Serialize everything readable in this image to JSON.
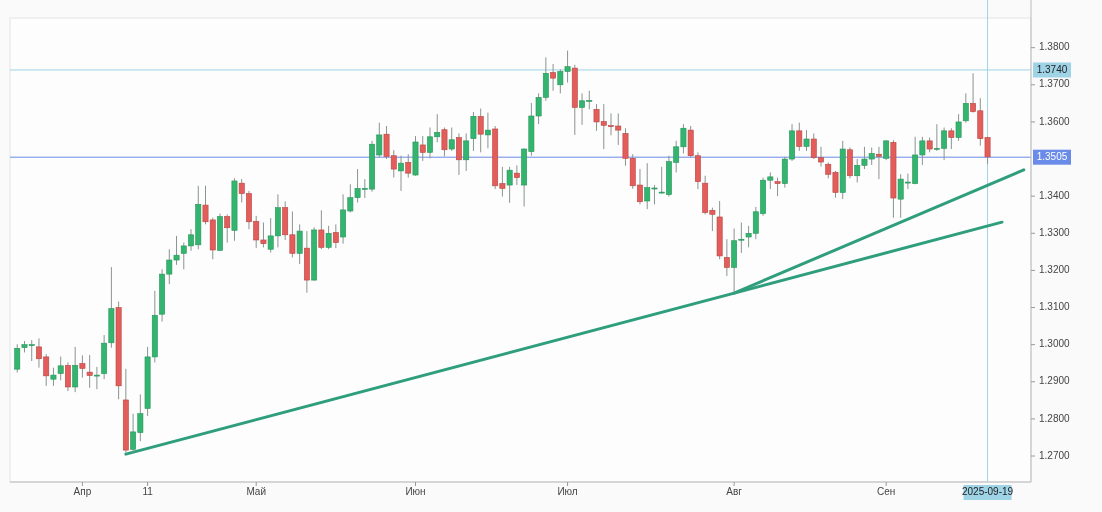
{
  "chart_data": {
    "type": "candlestick",
    "categories": [
      null,
      null,
      null,
      null,
      null,
      null,
      null,
      null,
      null,
      "Апр",
      null,
      null,
      null,
      null,
      null,
      null,
      null,
      null,
      "11",
      null,
      null,
      null,
      null,
      null,
      null,
      null,
      null,
      null,
      null,
      null,
      null,
      null,
      null,
      "Май",
      null,
      null,
      null,
      null,
      null,
      null,
      null,
      null,
      null,
      null,
      null,
      null,
      null,
      null,
      null,
      null,
      null,
      null,
      null,
      null,
      null,
      "Июн",
      null,
      null,
      null,
      null,
      null,
      null,
      null,
      null,
      null,
      null,
      null,
      null,
      null,
      null,
      null,
      null,
      null,
      null,
      null,
      null,
      "Июл",
      null,
      null,
      null,
      null,
      null,
      null,
      null,
      null,
      null,
      null,
      null,
      null,
      null,
      null,
      null,
      null,
      null,
      null,
      null,
      null,
      null,
      null,
      "Авг",
      null,
      null,
      null,
      null,
      null,
      null,
      null,
      null,
      null,
      null,
      null,
      null,
      null,
      null,
      null,
      null,
      null,
      null,
      null,
      null,
      "Сен",
      null,
      null,
      null,
      null,
      null,
      null,
      null,
      null,
      null,
      null,
      null,
      null,
      null,
      "2025-09-19",
      null,
      null,
      null,
      null,
      null
    ],
    "ohlc": [
      [
        1.2934,
        1.3001,
        1.2925,
        1.299
      ],
      [
        1.2992,
        1.301,
        1.2979,
        1.3
      ],
      [
        1.2999,
        1.3012,
        1.2956,
        1.3
      ],
      [
        1.2994,
        1.3017,
        1.2938,
        1.2962
      ],
      [
        1.2967,
        1.2974,
        1.2889,
        1.2916
      ],
      [
        1.2907,
        1.2938,
        1.2889,
        1.2918
      ],
      [
        1.2922,
        1.2968,
        1.2904,
        1.2943
      ],
      [
        1.2944,
        1.2952,
        1.2875,
        1.2886
      ],
      [
        1.2886,
        1.2994,
        1.2872,
        1.2944
      ],
      [
        1.2949,
        1.2971,
        1.2911,
        1.2936
      ],
      [
        1.2926,
        1.2972,
        1.2884,
        1.2917
      ],
      [
        1.2917,
        1.294,
        1.288,
        1.2918
      ],
      [
        1.2922,
        1.3026,
        1.2907,
        1.3004
      ],
      [
        1.3005,
        1.3209,
        1.2992,
        1.3097
      ],
      [
        1.31,
        1.3116,
        1.2853,
        1.2889
      ],
      [
        1.2851,
        1.2935,
        1.2709,
        1.2716
      ],
      [
        1.2718,
        1.2814,
        1.2709,
        1.2765
      ],
      [
        1.2763,
        1.2866,
        1.274,
        1.2814
      ],
      [
        1.2828,
        1.2994,
        1.2808,
        1.2967
      ],
      [
        1.2967,
        1.3145,
        1.2952,
        1.3079
      ],
      [
        1.3082,
        1.3203,
        1.3062,
        1.319
      ],
      [
        1.319,
        1.3257,
        1.3163,
        1.3228
      ],
      [
        1.3228,
        1.3293,
        1.3215,
        1.3241
      ],
      [
        1.3246,
        1.3275,
        1.3203,
        1.3266
      ],
      [
        1.3266,
        1.3311,
        1.3253,
        1.3296
      ],
      [
        1.3269,
        1.3428,
        1.3257,
        1.3378
      ],
      [
        1.3376,
        1.3428,
        1.3324,
        1.3331
      ],
      [
        1.3336,
        1.3342,
        1.323,
        1.3255
      ],
      [
        1.3254,
        1.3353,
        1.3253,
        1.3345
      ],
      [
        1.3345,
        1.3351,
        1.3275,
        1.3315
      ],
      [
        1.3308,
        1.3448,
        1.328,
        1.3441
      ],
      [
        1.3435,
        1.3446,
        1.3383,
        1.3407
      ],
      [
        1.3407,
        1.3414,
        1.3311,
        1.3331
      ],
      [
        1.3332,
        1.3347,
        1.326,
        1.3282
      ],
      [
        1.3282,
        1.3329,
        1.3262,
        1.3272
      ],
      [
        1.3257,
        1.3341,
        1.3248,
        1.3293
      ],
      [
        1.3293,
        1.3405,
        1.3262,
        1.3369
      ],
      [
        1.3369,
        1.3386,
        1.3282,
        1.3296
      ],
      [
        1.3296,
        1.3359,
        1.3235,
        1.3246
      ],
      [
        1.3246,
        1.3324,
        1.3217,
        1.3306
      ],
      [
        1.326,
        1.3306,
        1.314,
        1.3174
      ],
      [
        1.3174,
        1.3316,
        1.3172,
        1.3309
      ],
      [
        1.3309,
        1.3362,
        1.3257,
        1.3262
      ],
      [
        1.3262,
        1.332,
        1.3257,
        1.33
      ],
      [
        1.3302,
        1.3324,
        1.326,
        1.3275
      ],
      [
        1.329,
        1.3405,
        1.3272,
        1.3363
      ],
      [
        1.336,
        1.3432,
        1.3356,
        1.3396
      ],
      [
        1.3396,
        1.3473,
        1.3383,
        1.3421
      ],
      [
        1.342,
        1.3446,
        1.3395,
        1.3421
      ],
      [
        1.3419,
        1.3549,
        1.3412,
        1.354
      ],
      [
        1.3511,
        1.3598,
        1.3504,
        1.3565
      ],
      [
        1.3567,
        1.3589,
        1.35,
        1.3507
      ],
      [
        1.3509,
        1.3524,
        1.345,
        1.3473
      ],
      [
        1.3468,
        1.3509,
        1.3414,
        1.3489
      ],
      [
        1.3491,
        1.3513,
        1.345,
        1.3462
      ],
      [
        1.3457,
        1.3562,
        1.3455,
        1.3546
      ],
      [
        1.3538,
        1.3562,
        1.3495,
        1.3518
      ],
      [
        1.3518,
        1.3585,
        1.3502,
        1.356
      ],
      [
        1.356,
        1.3621,
        1.3545,
        1.3572
      ],
      [
        1.3579,
        1.3585,
        1.3507,
        1.3525
      ],
      [
        1.3527,
        1.3585,
        1.3522,
        1.3552
      ],
      [
        1.3558,
        1.3569,
        1.3457,
        1.3498
      ],
      [
        1.3498,
        1.3569,
        1.3468,
        1.3549
      ],
      [
        1.3555,
        1.3627,
        1.3522,
        1.3615
      ],
      [
        1.3615,
        1.3636,
        1.3518,
        1.3567
      ],
      [
        1.3565,
        1.3625,
        1.3529,
        1.3578
      ],
      [
        1.3581,
        1.3589,
        1.3419,
        1.3428
      ],
      [
        1.3434,
        1.3479,
        1.3399,
        1.3421
      ],
      [
        1.343,
        1.3479,
        1.3382,
        1.347
      ],
      [
        1.3462,
        1.3483,
        1.343,
        1.345
      ],
      [
        1.343,
        1.3529,
        1.3372,
        1.3527
      ],
      [
        1.352,
        1.3651,
        1.3509,
        1.3616
      ],
      [
        1.3616,
        1.3677,
        1.3594,
        1.3666
      ],
      [
        1.3666,
        1.3774,
        1.3657,
        1.3731
      ],
      [
        1.3733,
        1.3756,
        1.3684,
        1.3718
      ],
      [
        1.37,
        1.3742,
        1.3677,
        1.3736
      ],
      [
        1.3736,
        1.3792,
        1.3706,
        1.3749
      ],
      [
        1.3745,
        1.3754,
        1.3565,
        1.3639
      ],
      [
        1.3639,
        1.3677,
        1.3592,
        1.3657
      ],
      [
        1.3657,
        1.3684,
        1.3634,
        1.3658
      ],
      [
        1.3634,
        1.3648,
        1.3576,
        1.36
      ],
      [
        1.3601,
        1.3648,
        1.3527,
        1.3591
      ],
      [
        1.359,
        1.3623,
        1.3564,
        1.3589
      ],
      [
        1.3589,
        1.3623,
        1.3538,
        1.3578
      ],
      [
        1.3569,
        1.3583,
        1.3482,
        1.3502
      ],
      [
        1.3502,
        1.3513,
        1.342,
        1.3428
      ],
      [
        1.343,
        1.3473,
        1.3378,
        1.3385
      ],
      [
        1.3387,
        1.3489,
        1.3365,
        1.3423
      ],
      [
        1.3421,
        1.343,
        1.3378,
        1.3422
      ],
      [
        1.341,
        1.3479,
        1.3407,
        1.3411
      ],
      [
        1.3404,
        1.3509,
        1.3399,
        1.3493
      ],
      [
        1.3491,
        1.3549,
        1.3464,
        1.3533
      ],
      [
        1.3533,
        1.3594,
        1.3515,
        1.3583
      ],
      [
        1.3578,
        1.3589,
        1.3504,
        1.3509
      ],
      [
        1.3509,
        1.3518,
        1.3419,
        1.3439
      ],
      [
        1.3435,
        1.3455,
        1.3351,
        1.3356
      ],
      [
        1.3362,
        1.3369,
        1.3306,
        1.3351
      ],
      [
        1.3344,
        1.3387,
        1.323,
        1.3239
      ],
      [
        1.3235,
        1.3284,
        1.3185,
        1.3208
      ],
      [
        1.3208,
        1.3313,
        1.314,
        1.328
      ],
      [
        1.3283,
        1.3329,
        1.3247,
        1.3284
      ],
      [
        1.329,
        1.332,
        1.3262,
        1.33
      ],
      [
        1.33,
        1.3371,
        1.3284,
        1.3358
      ],
      [
        1.3353,
        1.345,
        1.3347,
        1.3443
      ],
      [
        1.3443,
        1.3464,
        1.3419,
        1.3452
      ],
      [
        1.3439,
        1.345,
        1.34,
        1.3434
      ],
      [
        1.3434,
        1.3506,
        1.3423,
        1.35
      ],
      [
        1.35,
        1.3594,
        1.3495,
        1.3576
      ],
      [
        1.3576,
        1.3598,
        1.3522,
        1.3534
      ],
      [
        1.3534,
        1.3578,
        1.3522,
        1.3554
      ],
      [
        1.3554,
        1.3569,
        1.35,
        1.3504
      ],
      [
        1.3504,
        1.3533,
        1.348,
        1.3492
      ],
      [
        1.3486,
        1.3491,
        1.3448,
        1.3459
      ],
      [
        1.3464,
        1.3468,
        1.3396,
        1.341
      ],
      [
        1.341,
        1.3549,
        1.3392,
        1.3527
      ],
      [
        1.3525,
        1.3531,
        1.3448,
        1.3455
      ],
      [
        1.3455,
        1.35,
        1.3437,
        1.3483
      ],
      [
        1.3483,
        1.3533,
        1.3473,
        1.35
      ],
      [
        1.35,
        1.3531,
        1.3484,
        1.3515
      ],
      [
        1.3513,
        1.3533,
        1.3446,
        1.3507
      ],
      [
        1.3502,
        1.3551,
        1.3497,
        1.3549
      ],
      [
        1.3545,
        1.3551,
        1.3342,
        1.3395
      ],
      [
        1.3392,
        1.3459,
        1.3342,
        1.3446
      ],
      [
        1.3437,
        1.3461,
        1.3419,
        1.3438
      ],
      [
        1.3434,
        1.356,
        1.3432,
        1.3511
      ],
      [
        1.3511,
        1.356,
        1.3484,
        1.3549
      ],
      [
        1.3549,
        1.3558,
        1.3518,
        1.3527
      ],
      [
        1.3528,
        1.3594,
        1.3522,
        1.3529
      ],
      [
        1.3529,
        1.3585,
        1.3497,
        1.3576
      ],
      [
        1.3576,
        1.3583,
        1.3527,
        1.3558
      ],
      [
        1.3558,
        1.3621,
        1.3549,
        1.36
      ],
      [
        1.3603,
        1.3677,
        1.3598,
        1.365
      ],
      [
        1.365,
        1.3731,
        1.3625,
        1.3628
      ],
      [
        1.363,
        1.3664,
        1.3536,
        1.3555
      ],
      [
        1.3558,
        1.356,
        1.3487,
        1.3506
      ],
      null,
      null,
      null,
      null,
      null
    ],
    "series": [
      {
        "type": "line",
        "color": "#2e9e7c",
        "values": [
          null,
          null,
          null,
          null,
          null,
          null,
          null,
          null,
          null,
          null,
          null,
          null,
          null,
          null,
          null,
          1.2705,
          null,
          null,
          null,
          null,
          null,
          null,
          null,
          null,
          null,
          null,
          null,
          null,
          null,
          null,
          null,
          null,
          null,
          null,
          null,
          null,
          null,
          null,
          null,
          null,
          null,
          null,
          null,
          null,
          null,
          null,
          null,
          null,
          null,
          null,
          null,
          null,
          null,
          null,
          null,
          null,
          null,
          null,
          null,
          null,
          null,
          null,
          null,
          null,
          null,
          null,
          null,
          null,
          null,
          null,
          null,
          null,
          null,
          null,
          null,
          null,
          null,
          null,
          null,
          null,
          null,
          null,
          null,
          null,
          null,
          null,
          null,
          null,
          null,
          null,
          null,
          null,
          null,
          null,
          null,
          null,
          null,
          null,
          null,
          null,
          null,
          null,
          null,
          null,
          null,
          null,
          null,
          null,
          null,
          null,
          null,
          null,
          null,
          null,
          null,
          null,
          null,
          null,
          null,
          null,
          null,
          null,
          null,
          null,
          null,
          null,
          null,
          null,
          null,
          null,
          null,
          null,
          null,
          null,
          null,
          null,
          1.333,
          null,
          null,
          null
        ]
      },
      {
        "type": "line",
        "color": "#2e9e7c",
        "values": [
          null,
          null,
          null,
          null,
          null,
          null,
          null,
          null,
          null,
          null,
          null,
          null,
          null,
          null,
          null,
          null,
          null,
          null,
          null,
          null,
          null,
          null,
          null,
          null,
          null,
          null,
          null,
          null,
          null,
          null,
          null,
          null,
          null,
          null,
          null,
          null,
          null,
          null,
          null,
          null,
          null,
          null,
          null,
          null,
          null,
          null,
          null,
          null,
          null,
          null,
          null,
          null,
          null,
          null,
          null,
          null,
          null,
          null,
          null,
          null,
          null,
          null,
          null,
          null,
          null,
          null,
          null,
          null,
          null,
          null,
          null,
          null,
          null,
          null,
          null,
          null,
          null,
          null,
          null,
          null,
          null,
          null,
          null,
          null,
          null,
          null,
          null,
          null,
          null,
          null,
          null,
          null,
          null,
          null,
          null,
          null,
          null,
          null,
          null,
          1.3139,
          null,
          null,
          null,
          null,
          null,
          null,
          null,
          null,
          null,
          null,
          null,
          null,
          null,
          null,
          null,
          null,
          null,
          null,
          null,
          null,
          null,
          null,
          null,
          null,
          null,
          null,
          null,
          null,
          null,
          null,
          null,
          null,
          null,
          null,
          null,
          null,
          null,
          null,
          null,
          1.3471
        ]
      }
    ],
    "ylim": [
      1.263,
      1.388
    ],
    "yticks": [
      {
        "value": 1.27,
        "label": "1.2700"
      },
      {
        "value": 1.28,
        "label": "1.2800"
      },
      {
        "value": 1.29,
        "label": "1.2900"
      },
      {
        "value": 1.3,
        "label": "1.3000"
      },
      {
        "value": 1.31,
        "label": "1.3100"
      },
      {
        "value": 1.32,
        "label": "1.3200"
      },
      {
        "value": 1.33,
        "label": "1.3300"
      },
      {
        "value": 1.34,
        "label": "1.3400"
      },
      {
        "value": 1.36,
        "label": "1.3600"
      },
      {
        "value": 1.37,
        "label": "1.3700"
      },
      {
        "value": 1.38,
        "label": "1.3800"
      }
    ],
    "ref_lines": [
      {
        "axis": "y",
        "value": 1.374,
        "label": "1.3740",
        "color": "#9fd3e6"
      },
      {
        "axis": "y",
        "value": 1.3505,
        "label": "1.3505",
        "color": "#6a8ce8"
      },
      {
        "axis": "x",
        "value": "2025-09-19",
        "color": "#9fd3e6"
      }
    ]
  }
}
